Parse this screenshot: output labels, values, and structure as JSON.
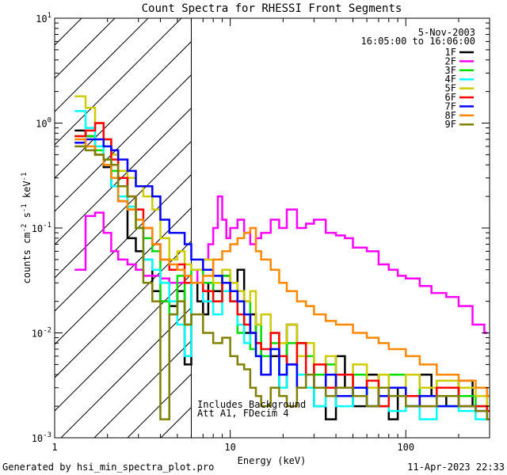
{
  "footer": {
    "generated_by": "Generated by hsi_min_spectra_plot.pro",
    "timestamp": "11-Apr-2023 22:33"
  },
  "annotations": {
    "date": "5-Nov-2003",
    "time_range": "16:05:00 to 16:06:00",
    "background_note": "Includes Background",
    "attenuator_note": "Att A1, FDecim 4"
  },
  "chart_data": {
    "type": "line",
    "title": "Count Spectra for RHESSI Front Segments",
    "xlabel": "Energy (keV)",
    "ylabel": "counts cm-2 s-1 keV-1",
    "xscale": "log",
    "yscale": "log",
    "xlim": [
      1,
      300
    ],
    "ylim": [
      0.001,
      10
    ],
    "x_ticks": [
      {
        "value": 1,
        "label": "1"
      },
      {
        "value": 10,
        "label": "10"
      },
      {
        "value": 100,
        "label": "100"
      }
    ],
    "y_ticks": [
      {
        "value": 0.001,
        "base": "10",
        "exp": "-3"
      },
      {
        "value": 0.01,
        "base": "10",
        "exp": "-2"
      },
      {
        "value": 0.1,
        "base": "10",
        "exp": "-1"
      },
      {
        "value": 1,
        "base": "10",
        "exp": "0"
      },
      {
        "value": 10,
        "base": "10",
        "exp": "1"
      }
    ],
    "hatch_region_max_energy": 6,
    "series": [
      {
        "name": "1F",
        "color": "#000000",
        "energy": [
          1.3,
          1.5,
          1.7,
          1.9,
          2.1,
          2.3,
          2.6,
          2.9,
          3.2,
          3.6,
          4,
          4.5,
          5,
          5.5,
          6,
          6.5,
          7,
          7.5,
          8,
          9,
          10,
          11,
          12,
          13,
          14,
          15,
          17,
          19,
          21,
          24,
          27,
          30,
          35,
          40,
          45,
          50,
          60,
          70,
          80,
          90,
          100,
          120,
          140,
          170,
          200,
          240,
          280
        ],
        "values": [
          0.85,
          0.75,
          0.5,
          0.38,
          0.25,
          0.18,
          0.08,
          0.06,
          0.05,
          0.025,
          0.02,
          0.018,
          0.025,
          0.005,
          0.03,
          0.02,
          0.015,
          0.03,
          0.025,
          0.035,
          0.02,
          0.04,
          0.01,
          0.015,
          0.008,
          0.004,
          0.006,
          0.003,
          0.012,
          0.008,
          0.004,
          0.002,
          0.0015,
          0.006,
          0.003,
          0.002,
          0.004,
          0.002,
          0.0015,
          0.003,
          0.002,
          0.004,
          0.0025,
          0.002,
          0.0035,
          0.002,
          0.002
        ]
      },
      {
        "name": "2F",
        "color": "#ff00ff",
        "energy": [
          1.3,
          1.5,
          1.7,
          1.9,
          2.1,
          2.3,
          2.6,
          2.9,
          3.2,
          3.6,
          4,
          4.5,
          5,
          5.5,
          6,
          6.5,
          7,
          7.5,
          8,
          8.5,
          9,
          9.5,
          10,
          11,
          12,
          13,
          14,
          15,
          17,
          19,
          21,
          24,
          27,
          30,
          35,
          40,
          45,
          50,
          60,
          70,
          80,
          90,
          100,
          120,
          140,
          170,
          200,
          240,
          280
        ],
        "values": [
          0.04,
          0.13,
          0.14,
          0.09,
          0.06,
          0.05,
          0.045,
          0.04,
          0.035,
          0.035,
          0.033,
          0.03,
          0.03,
          0.03,
          0.03,
          0.04,
          0.05,
          0.07,
          0.1,
          0.2,
          0.12,
          0.08,
          0.1,
          0.12,
          0.09,
          0.07,
          0.08,
          0.09,
          0.12,
          0.1,
          0.15,
          0.1,
          0.11,
          0.12,
          0.09,
          0.085,
          0.08,
          0.065,
          0.06,
          0.045,
          0.04,
          0.035,
          0.033,
          0.028,
          0.024,
          0.022,
          0.018,
          0.012,
          0.01
        ]
      },
      {
        "name": "3F",
        "color": "#00dd00",
        "energy": [
          1.3,
          1.5,
          1.7,
          1.9,
          2.1,
          2.3,
          2.6,
          2.9,
          3.2,
          3.6,
          4,
          4.5,
          5,
          5.5,
          6,
          7,
          8,
          9,
          10,
          11,
          12,
          13,
          14,
          15,
          17,
          19,
          21,
          24,
          27,
          30,
          35,
          40,
          50,
          60,
          70,
          80,
          100,
          120,
          150,
          200,
          250,
          290
        ],
        "values": [
          0.75,
          0.75,
          0.55,
          0.45,
          0.35,
          0.3,
          0.15,
          0.1,
          0.08,
          0.06,
          0.02,
          0.015,
          0.035,
          0.012,
          0.04,
          0.03,
          0.02,
          0.035,
          0.025,
          0.01,
          0.02,
          0.007,
          0.012,
          0.006,
          0.008,
          0.004,
          0.008,
          0.003,
          0.006,
          0.004,
          0.005,
          0.003,
          0.004,
          0.002,
          0.003,
          0.004,
          0.002,
          0.003,
          0.002,
          0.0025,
          0.002,
          0.0018
        ]
      },
      {
        "name": "4F",
        "color": "#00ffff",
        "energy": [
          1.3,
          1.5,
          1.7,
          1.9,
          2.1,
          2.3,
          2.6,
          2.9,
          3.2,
          3.6,
          4,
          4.5,
          5,
          5.5,
          6,
          7,
          8,
          9,
          10,
          11,
          12,
          13,
          14,
          15,
          17,
          19,
          21,
          24,
          27,
          30,
          35,
          40,
          50,
          60,
          70,
          80,
          100,
          120,
          150,
          200,
          250,
          290
        ],
        "values": [
          1.3,
          0.9,
          0.6,
          0.4,
          0.25,
          0.2,
          0.16,
          0.12,
          0.05,
          0.04,
          0.03,
          0.02,
          0.012,
          0.006,
          0.03,
          0.02,
          0.015,
          0.025,
          0.02,
          0.012,
          0.008,
          0.01,
          0.006,
          0.004,
          0.007,
          0.003,
          0.005,
          0.004,
          0.003,
          0.002,
          0.004,
          0.002,
          0.003,
          0.002,
          0.0025,
          0.0018,
          0.002,
          0.0015,
          0.002,
          0.0018,
          0.0015,
          0.0015
        ]
      },
      {
        "name": "5F",
        "color": "#cccc00",
        "energy": [
          1.3,
          1.5,
          1.7,
          1.9,
          2.1,
          2.3,
          2.6,
          2.9,
          3.2,
          3.6,
          4,
          4.5,
          5,
          5.5,
          6,
          7,
          8,
          9,
          10,
          11,
          12,
          13,
          14,
          15,
          17,
          19,
          21,
          24,
          27,
          30,
          35,
          40,
          50,
          60,
          70,
          80,
          100,
          120,
          150,
          200,
          250,
          290
        ],
        "values": [
          1.8,
          1.4,
          1.0,
          0.7,
          0.5,
          0.35,
          0.3,
          0.25,
          0.2,
          0.15,
          0.08,
          0.05,
          0.06,
          0.045,
          0.04,
          0.05,
          0.03,
          0.04,
          0.03,
          0.025,
          0.02,
          0.025,
          0.012,
          0.015,
          0.01,
          0.008,
          0.012,
          0.006,
          0.008,
          0.005,
          0.006,
          0.003,
          0.005,
          0.003,
          0.004,
          0.003,
          0.004,
          0.003,
          0.0035,
          0.003,
          0.0025,
          0.002
        ]
      },
      {
        "name": "6F",
        "color": "#ff0000",
        "energy": [
          1.3,
          1.5,
          1.7,
          1.9,
          2.1,
          2.3,
          2.6,
          2.9,
          3.2,
          3.6,
          4,
          4.5,
          5,
          5.5,
          6,
          7,
          8,
          9,
          10,
          11,
          12,
          13,
          14,
          15,
          17,
          19,
          21,
          24,
          27,
          30,
          35,
          40,
          50,
          60,
          70,
          80,
          100,
          120,
          150,
          200,
          250,
          290
        ],
        "values": [
          0.75,
          0.85,
          1.0,
          0.7,
          0.45,
          0.3,
          0.2,
          0.15,
          0.1,
          0.07,
          0.05,
          0.04,
          0.045,
          0.03,
          0.03,
          0.025,
          0.02,
          0.03,
          0.02,
          0.015,
          0.012,
          0.01,
          0.008,
          0.007,
          0.01,
          0.006,
          0.005,
          0.008,
          0.004,
          0.005,
          0.003,
          0.004,
          0.003,
          0.0035,
          0.002,
          0.003,
          0.0025,
          0.002,
          0.003,
          0.002,
          0.002,
          0.0018
        ]
      },
      {
        "name": "7F",
        "color": "#0000ff",
        "energy": [
          1.3,
          1.5,
          1.7,
          1.9,
          2.1,
          2.3,
          2.6,
          2.9,
          3.2,
          3.6,
          4,
          4.5,
          5,
          5.5,
          6,
          7,
          8,
          9,
          10,
          11,
          12,
          13,
          14,
          15,
          17,
          19,
          21,
          24,
          27,
          30,
          35,
          40,
          50,
          60,
          70,
          80,
          100,
          120,
          150,
          200,
          250,
          290
        ],
        "values": [
          0.65,
          0.7,
          0.7,
          0.6,
          0.55,
          0.45,
          0.35,
          0.25,
          0.25,
          0.2,
          0.12,
          0.09,
          0.09,
          0.07,
          0.05,
          0.04,
          0.035,
          0.03,
          0.025,
          0.02,
          0.015,
          0.01,
          0.006,
          0.004,
          0.007,
          0.004,
          0.005,
          0.003,
          0.004,
          0.003,
          0.004,
          0.0025,
          0.003,
          0.002,
          0.0025,
          0.003,
          0.002,
          0.0025,
          0.002,
          0.002,
          0.0018,
          0.0015
        ]
      },
      {
        "name": "8F",
        "color": "#ff8800",
        "energy": [
          1.3,
          1.5,
          1.7,
          1.9,
          2.1,
          2.3,
          2.6,
          2.9,
          3.2,
          3.6,
          4,
          4.5,
          5,
          5.5,
          6,
          7,
          8,
          9,
          10,
          11,
          12,
          13,
          14,
          15,
          17,
          19,
          21,
          24,
          27,
          30,
          35,
          40,
          50,
          60,
          70,
          80,
          100,
          120,
          150,
          200,
          250,
          290
        ],
        "values": [
          0.7,
          0.6,
          0.5,
          0.4,
          0.3,
          0.18,
          0.15,
          0.12,
          0.1,
          0.07,
          0.05,
          0.045,
          0.04,
          0.035,
          0.03,
          0.035,
          0.05,
          0.06,
          0.07,
          0.08,
          0.09,
          0.1,
          0.06,
          0.05,
          0.04,
          0.03,
          0.025,
          0.02,
          0.018,
          0.015,
          0.013,
          0.012,
          0.01,
          0.009,
          0.008,
          0.007,
          0.006,
          0.005,
          0.004,
          0.0035,
          0.003,
          0.0025
        ]
      },
      {
        "name": "9F",
        "color": "#808000",
        "energy": [
          1.3,
          1.5,
          1.7,
          1.9,
          2.1,
          2.3,
          2.6,
          2.9,
          3.2,
          3.6,
          4,
          4.5,
          5,
          5.5,
          6,
          7,
          8,
          9,
          10,
          11,
          12,
          13,
          14,
          15,
          17,
          19,
          21,
          24,
          27,
          30,
          35,
          40,
          50,
          60,
          70,
          80,
          100,
          120,
          150,
          200,
          250,
          290
        ],
        "values": [
          0.6,
          0.55,
          0.5,
          0.45,
          0.4,
          0.25,
          0.2,
          0.1,
          0.03,
          0.02,
          0.0015,
          0.015,
          0.02,
          0.012,
          0.015,
          0.01,
          0.008,
          0.009,
          0.006,
          0.005,
          0.0045,
          0.003,
          0.0025,
          0.002,
          0.003,
          0.0025,
          0.002,
          0.003,
          0.004,
          0.003,
          0.0025,
          0.003,
          0.0025,
          0.002,
          0.003,
          0.0025,
          0.002,
          0.002,
          0.0025,
          0.002,
          0.0018,
          0.0015
        ]
      }
    ]
  }
}
